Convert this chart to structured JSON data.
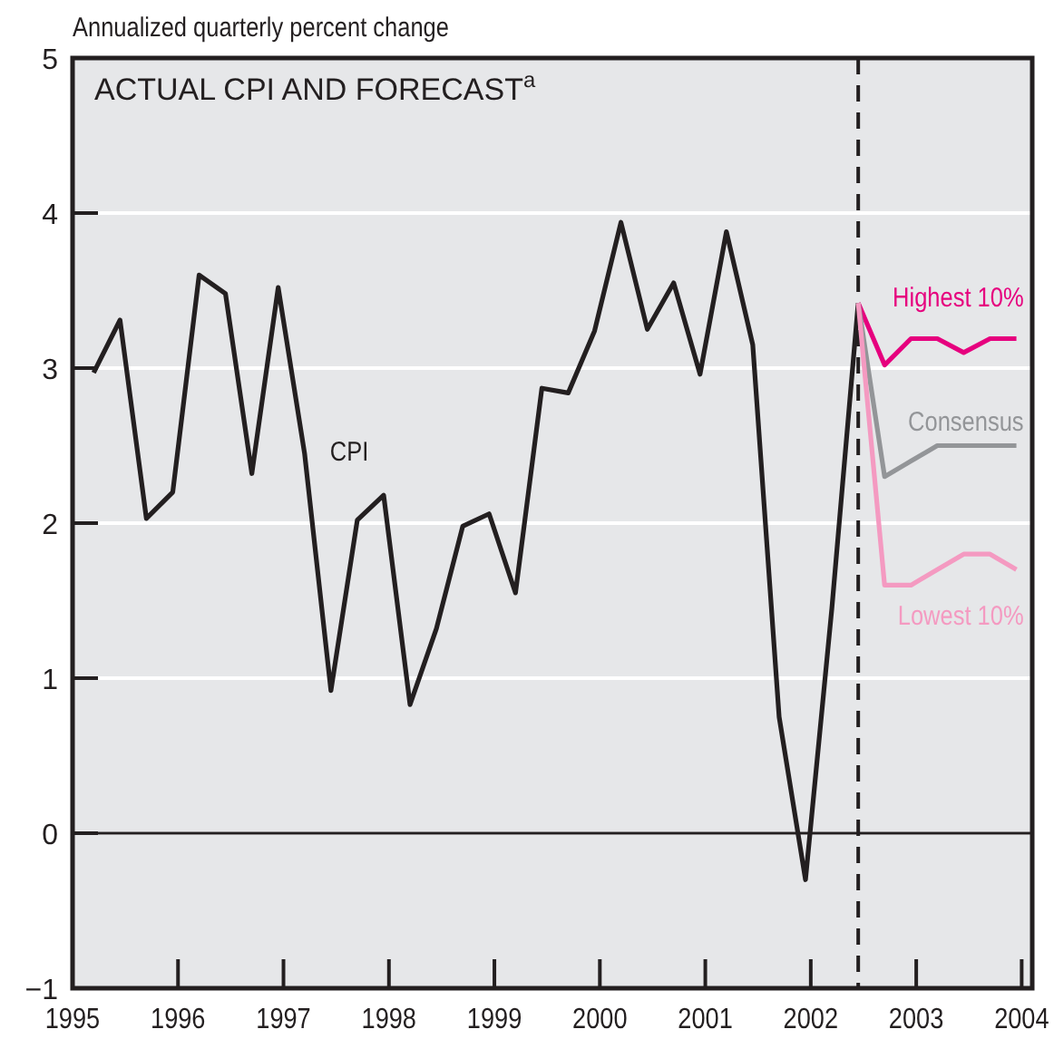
{
  "chart_data": {
    "type": "line",
    "title": "ACTUAL CPI AND FORECAST$^{a}$",
    "ylabel": "Annualized quarterly percent change",
    "xlim": [
      1995,
      2004.1
    ],
    "xticks": [
      1995,
      1996,
      1997,
      1998,
      1999,
      2000,
      2001,
      2002,
      2003,
      2004
    ],
    "ylim": [
      -1,
      5
    ],
    "yticks": [
      -1,
      0,
      1,
      2,
      3,
      4,
      5
    ],
    "grid": "y",
    "marker": "none",
    "line_style": "solid",
    "ref_lines": [
      {
        "axis": "y",
        "value": 0,
        "color": "#231f20",
        "line_style": "solid"
      },
      {
        "axis": "x",
        "value": 2002.45,
        "color": "#231f20",
        "line_style": "dashed"
      }
    ],
    "series": [
      {
        "name": "CPI",
        "color": "#231f20",
        "x": [
          1995.2,
          1995.45,
          1995.7,
          1995.95,
          1996.2,
          1996.45,
          1996.7,
          1996.95,
          1997.2,
          1997.45,
          1997.7,
          1997.95,
          1998.2,
          1998.45,
          1998.7,
          1998.95,
          1999.2,
          1999.45,
          1999.7,
          1999.95,
          2000.2,
          2000.45,
          2000.7,
          2000.95,
          2001.2,
          2001.45,
          2001.7,
          2001.95,
          2002.2,
          2002.45
        ],
        "values": [
          2.97,
          3.31,
          2.03,
          2.2,
          3.6,
          3.48,
          2.32,
          3.52,
          2.45,
          0.92,
          2.02,
          2.18,
          0.83,
          1.32,
          1.98,
          2.06,
          1.55,
          2.87,
          2.84,
          3.24,
          3.94,
          3.25,
          3.55,
          2.96,
          3.88,
          3.15,
          0.75,
          -0.3,
          1.45,
          3.42
        ]
      },
      {
        "name": "Highest 10%",
        "color": "#e6007e",
        "x": [
          2002.45,
          2002.7,
          2002.95,
          2003.2,
          2003.45,
          2003.7,
          2003.95
        ],
        "values": [
          3.42,
          3.02,
          3.19,
          3.19,
          3.1,
          3.19,
          3.19
        ]
      },
      {
        "name": "Consensus",
        "color": "#939598",
        "x": [
          2002.45,
          2002.7,
          2002.95,
          2003.2,
          2003.45,
          2003.7,
          2003.95
        ],
        "values": [
          3.42,
          2.3,
          2.4,
          2.5,
          2.5,
          2.5,
          2.5
        ]
      },
      {
        "name": "Lowest 10%",
        "color": "#f49ac1",
        "x": [
          2002.45,
          2002.7,
          2002.95,
          2003.2,
          2003.45,
          2003.7,
          2003.95
        ],
        "values": [
          3.42,
          1.6,
          1.6,
          1.7,
          1.8,
          1.8,
          1.7
        ]
      }
    ]
  }
}
